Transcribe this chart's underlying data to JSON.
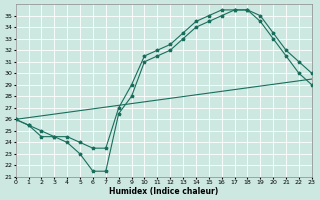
{
  "background_color": "#cce8e0",
  "grid_color": "#b0d8d0",
  "line_color": "#1a6e5e",
  "xlabel": "Humidex (Indice chaleur)",
  "xlim": [
    0,
    23
  ],
  "ylim": [
    21,
    36
  ],
  "xticks": [
    0,
    1,
    2,
    3,
    4,
    5,
    6,
    7,
    8,
    9,
    10,
    11,
    12,
    13,
    14,
    15,
    16,
    17,
    18,
    19,
    20,
    21,
    22,
    23
  ],
  "yticks": [
    21,
    22,
    23,
    24,
    25,
    26,
    27,
    28,
    29,
    30,
    31,
    32,
    33,
    34,
    35
  ],
  "curve_wavy_x": [
    0,
    1,
    2,
    3,
    4,
    5,
    6,
    7,
    8,
    9,
    10,
    11,
    12,
    13,
    14,
    15,
    16,
    17,
    18,
    19,
    20,
    21,
    22,
    23
  ],
  "curve_wavy_y": [
    26.0,
    25.5,
    24.5,
    24.5,
    24.0,
    23.0,
    21.5,
    21.5,
    26.5,
    28.0,
    31.0,
    31.5,
    32.0,
    33.0,
    34.0,
    34.5,
    35.0,
    35.5,
    35.5,
    34.5,
    33.0,
    31.5,
    30.0,
    29.0
  ],
  "curve_upper_x": [
    0,
    1,
    2,
    3,
    4,
    5,
    6,
    7,
    8,
    9,
    10,
    11,
    12,
    13,
    14,
    15,
    16,
    17,
    18,
    19,
    20,
    21,
    22,
    23
  ],
  "curve_upper_y": [
    26.0,
    25.5,
    25.0,
    24.5,
    24.5,
    24.0,
    23.5,
    23.5,
    27.0,
    29.0,
    31.5,
    32.0,
    32.5,
    33.5,
    34.5,
    35.0,
    35.5,
    35.5,
    35.5,
    35.0,
    33.5,
    32.0,
    31.0,
    30.0
  ],
  "trend_x": [
    0,
    23
  ],
  "trend_y": [
    26.0,
    29.5
  ]
}
